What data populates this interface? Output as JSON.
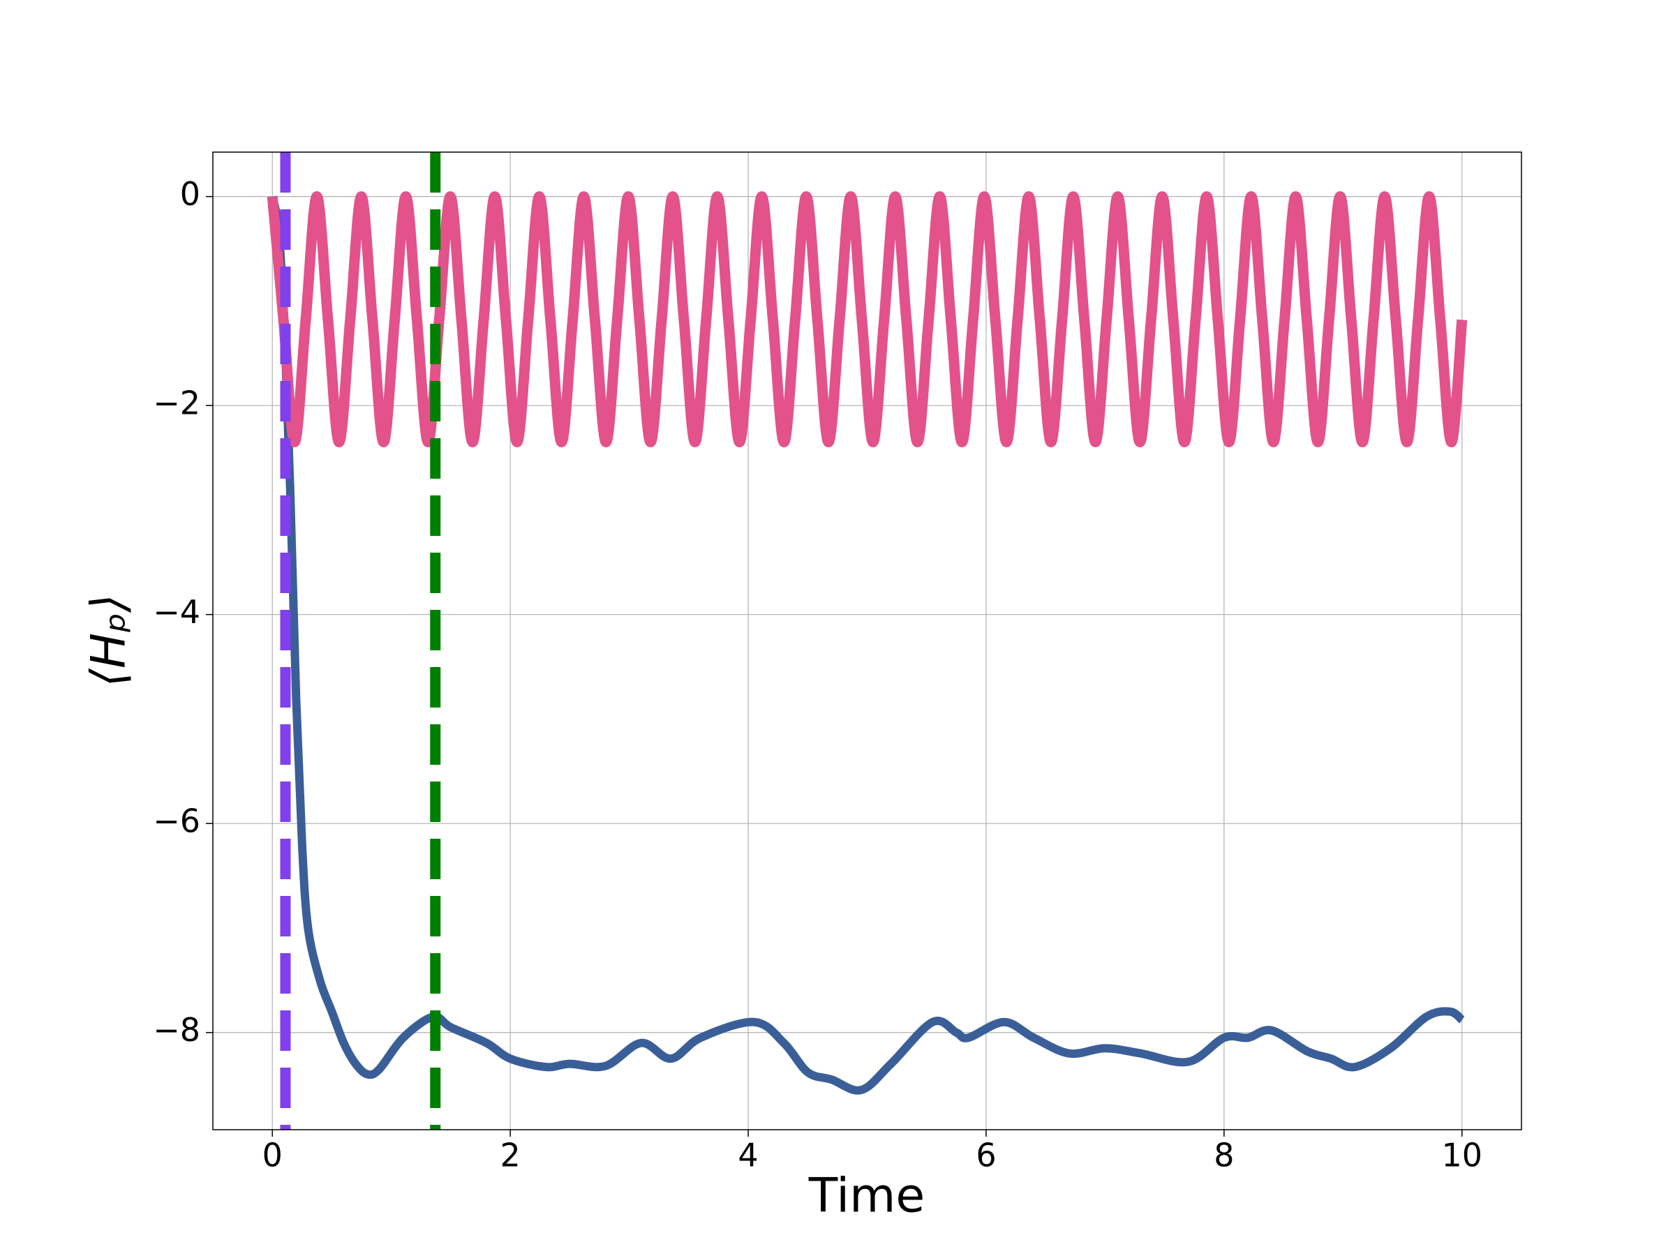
{
  "chart_data": {
    "type": "line",
    "xlabel": "Time",
    "ylabel": "⟨Hₚ⟩",
    "xlim": [
      -0.5,
      10.5
    ],
    "ylim": [
      -8.93,
      0.425
    ],
    "xticks": [
      0,
      2,
      4,
      6,
      8,
      10
    ],
    "yticks": [
      {
        "value": -8,
        "label": "−8"
      },
      {
        "value": -6,
        "label": "−6"
      },
      {
        "value": -4,
        "label": "−4"
      },
      {
        "value": -2,
        "label": "−2"
      },
      0
    ],
    "grid": true,
    "vlines": [
      {
        "x": 0.11,
        "color": "#8040ee"
      },
      {
        "x": 1.37,
        "color": "#008000"
      }
    ],
    "series": [
      {
        "color": "#3a5f98",
        "x": [
          0,
          0.05,
          0.1,
          0.15,
          0.2,
          0.25,
          0.3,
          0.4,
          0.5,
          0.6,
          0.7,
          0.8,
          0.9,
          1.1,
          1.35,
          1.5,
          1.8,
          2.0,
          2.3,
          2.5,
          2.8,
          3.1,
          3.35,
          3.6,
          4.05,
          4.3,
          4.5,
          4.7,
          4.95,
          5.2,
          5.55,
          5.75,
          5.85,
          6.15,
          6.4,
          6.7,
          7.0,
          7.3,
          7.7,
          8.0,
          8.2,
          8.4,
          8.7,
          8.9,
          9.1,
          9.4,
          9.7,
          9.9,
          10
        ],
        "values": [
          0,
          -0.3,
          -1.2,
          -2.8,
          -4.8,
          -6.2,
          -7.0,
          -7.5,
          -7.8,
          -8.1,
          -8.3,
          -8.4,
          -8.35,
          -8.05,
          -7.85,
          -7.95,
          -8.1,
          -8.25,
          -8.33,
          -8.3,
          -8.32,
          -8.1,
          -8.25,
          -8.05,
          -7.9,
          -8.1,
          -8.38,
          -8.45,
          -8.55,
          -8.3,
          -7.9,
          -8.0,
          -8.05,
          -7.9,
          -8.05,
          -8.2,
          -8.15,
          -8.2,
          -8.28,
          -8.05,
          -8.05,
          -7.98,
          -8.18,
          -8.25,
          -8.33,
          -8.15,
          -7.85,
          -7.8,
          -7.88
        ]
      },
      {
        "color": "#e3528a",
        "x": [
          0,
          0.0935,
          0.187,
          0.2805,
          0.374,
          0.4675,
          0.561,
          0.6545,
          0.748,
          0.8415,
          0.935,
          1.0285,
          1.122,
          1.2155,
          1.309,
          1.4025,
          1.496,
          1.5895,
          1.683,
          1.7765,
          1.87,
          1.9635,
          2.057,
          2.1505,
          2.244,
          2.3375,
          2.431,
          2.5245,
          2.618,
          2.7115,
          2.805,
          2.8985,
          2.992,
          3.0855,
          3.179,
          3.2725,
          3.366,
          3.4595,
          3.553,
          3.6465,
          3.74,
          3.8335,
          3.927,
          4.0205,
          4.114,
          4.2075,
          4.301,
          4.3945,
          4.488,
          4.5815,
          4.675,
          4.7685,
          4.862,
          4.9555,
          5.049,
          5.1425,
          5.236,
          5.3295,
          5.423,
          5.5165,
          5.61,
          5.7035,
          5.797,
          5.8905,
          5.984,
          6.0775,
          6.171,
          6.2645,
          6.358,
          6.4515,
          6.545,
          6.6385,
          6.732,
          6.8255,
          6.919,
          7.0125,
          7.106,
          7.1995,
          7.293,
          7.3865,
          7.48,
          7.5735,
          7.667,
          7.7605,
          7.854,
          7.9475,
          8.041,
          8.1345,
          8.228,
          8.3215,
          8.415,
          8.5085,
          8.602,
          8.6955,
          8.789,
          8.8825,
          8.976,
          9.0695,
          9.163,
          9.2565,
          9.35,
          9.4435,
          9.537,
          9.6305,
          9.724,
          9.8175,
          9.911,
          10
        ],
        "values": [
          0,
          -1.18,
          -2.35,
          -1.18,
          0,
          -1.18,
          -2.35,
          -1.18,
          0,
          -1.18,
          -2.35,
          -1.18,
          0,
          -1.18,
          -2.35,
          -1.18,
          0,
          -1.18,
          -2.35,
          -1.18,
          0,
          -1.18,
          -2.35,
          -1.18,
          0,
          -1.18,
          -2.35,
          -1.18,
          0,
          -1.18,
          -2.35,
          -1.18,
          0,
          -1.18,
          -2.35,
          -1.18,
          0,
          -1.18,
          -2.35,
          -1.18,
          0,
          -1.18,
          -2.35,
          -1.18,
          0,
          -1.18,
          -2.35,
          -1.18,
          0,
          -1.18,
          -2.35,
          -1.18,
          0,
          -1.18,
          -2.35,
          -1.18,
          0,
          -1.18,
          -2.35,
          -1.18,
          0,
          -1.18,
          -2.35,
          -1.18,
          0,
          -1.18,
          -2.35,
          -1.18,
          0,
          -1.18,
          -2.35,
          -1.18,
          0,
          -1.18,
          -2.35,
          -1.18,
          0,
          -1.18,
          -2.35,
          -1.18,
          0,
          -1.18,
          -2.35,
          -1.18,
          0,
          -1.18,
          -2.35,
          -1.18,
          0,
          -1.18,
          -2.35,
          -1.18,
          0,
          -1.18,
          -2.35,
          -1.18,
          0,
          -1.18,
          -2.35,
          -1.18,
          0,
          -1.18,
          -2.35,
          -1.18,
          0,
          -1.18,
          -2.35,
          -1.18
        ]
      }
    ]
  }
}
